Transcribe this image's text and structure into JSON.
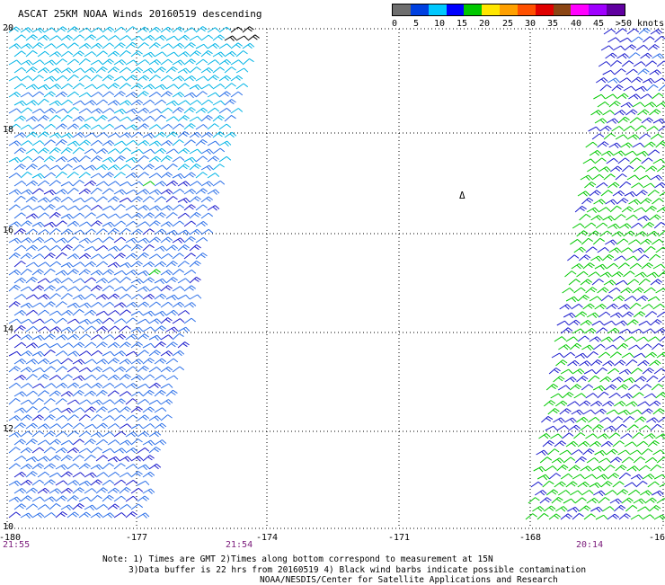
{
  "title": "ASCAT 25KM NOAA Winds 20160519 descending",
  "legend": {
    "colors": [
      "#6e6e6e",
      "#0040e0",
      "#00c8ff",
      "#0000ff",
      "#00c800",
      "#ffe600",
      "#ffa000",
      "#ff5000",
      "#e00000",
      "#8b4513",
      "#ff00ff",
      "#a000ff",
      "#6000a0"
    ],
    "labels": [
      "0",
      "5",
      "10",
      "15",
      "20",
      "25",
      "30",
      "35",
      "40",
      "45",
      ">50 knots"
    ]
  },
  "axes": {
    "x_ticks": [
      "-180",
      "-177",
      "-174",
      "-171",
      "-168",
      "-16"
    ],
    "y_ticks": [
      "20",
      "18",
      "16",
      "14",
      "12",
      "10"
    ]
  },
  "times": {
    "left": "21:55",
    "mid": "21:54",
    "right": "20:14"
  },
  "island_label": "Δ",
  "notes": {
    "line1": "Note: 1) Times are GMT 2)Times along bottom correspond to measurement at 15N",
    "line2": "3)Data buffer is 22 hrs from 20160519 4) Black wind barbs indicate possible contamination",
    "line3": "NOAA/NESDIS/Center for Satellite Applications and Research"
  },
  "swath_colors": {
    "cyan": "#00b4e6",
    "blue_light": "#2b6fe8",
    "blue": "#1a1acc",
    "green": "#00c800",
    "black": "#000000"
  }
}
